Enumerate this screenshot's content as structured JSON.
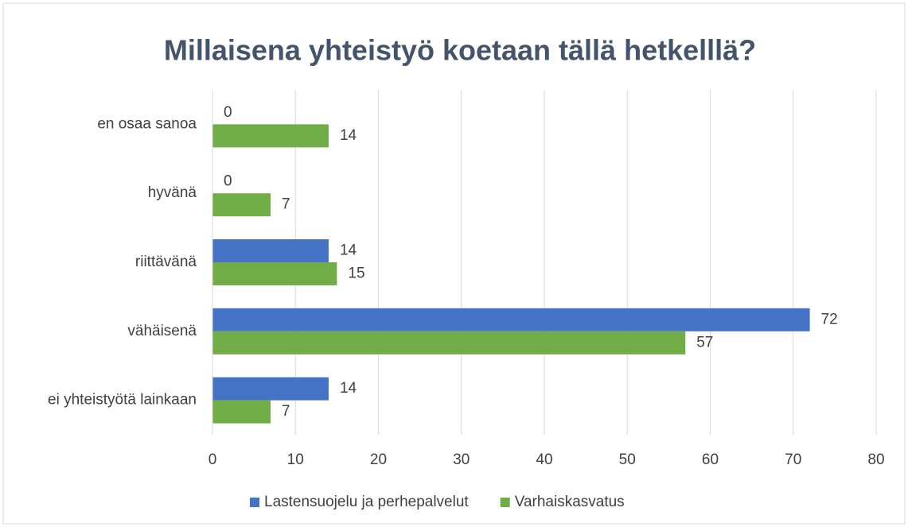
{
  "chart_data": {
    "type": "bar",
    "orientation": "horizontal",
    "title": "Millaisena yhteistyö koetaan tällä hetkelllä?",
    "categories": [
      "en osaa sanoa",
      "hyvänä",
      "riittävänä",
      "vähäisenä",
      "ei yhteistyötä lainkaan"
    ],
    "series": [
      {
        "name": "Lastensuojelu ja perhepalvelut",
        "color": "#4472c4",
        "values": [
          0,
          0,
          14,
          72,
          14
        ]
      },
      {
        "name": "Varhaiskasvatus",
        "color": "#70ad47",
        "values": [
          14,
          7,
          15,
          57,
          7
        ]
      }
    ],
    "xlim": [
      0,
      80
    ],
    "xticks": [
      0,
      10,
      20,
      30,
      40,
      50,
      60,
      70,
      80
    ],
    "grid": true,
    "legend": "bottom"
  }
}
